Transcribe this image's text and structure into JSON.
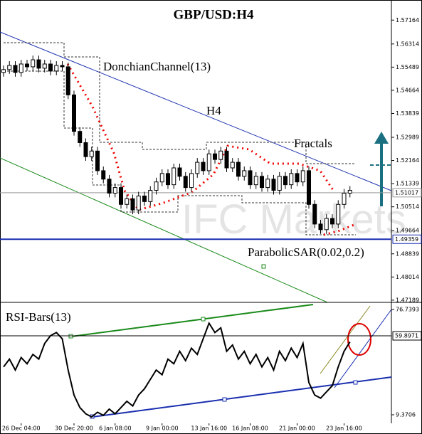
{
  "chart_data": [
    {
      "type": "candlestick",
      "title": "GBP/USD:H4",
      "annotations": [
        "DonchianChannel(13)",
        "H4",
        "Fractals",
        "ParabolicSAR(0.02,0.2)"
      ],
      "watermark": "IFC Markets",
      "categories": [
        null,
        null,
        null,
        "26 Dec 04:00",
        null,
        null,
        null,
        null,
        null,
        null,
        null,
        null,
        "30 Dec 20:00",
        null,
        null,
        null,
        null,
        null,
        null,
        "6 Jan 08:00",
        null,
        null,
        null,
        null,
        null,
        null,
        null,
        "9 Jan 00:00",
        null,
        null,
        null,
        null,
        null,
        null,
        null,
        "13 Jan 16:00",
        null,
        null,
        null,
        null,
        null,
        null,
        "16 Jan 08:00",
        null,
        null,
        null,
        null,
        null,
        null,
        null,
        "21 Jan 00:00",
        null,
        null,
        null,
        null,
        null,
        null,
        null,
        "23 Jan 16:00",
        null
      ],
      "open": [
        1.553,
        1.554,
        1.5555,
        1.553,
        1.556,
        1.555,
        1.5575,
        1.5545,
        1.556,
        1.5535,
        1.5555,
        1.555,
        1.545,
        1.532,
        1.528,
        1.523,
        1.525,
        1.518,
        1.515,
        1.51,
        1.512,
        1.506,
        1.508,
        1.504,
        1.509,
        1.507,
        1.511,
        1.514,
        1.517,
        1.513,
        1.519,
        1.516,
        1.512,
        1.517,
        1.521,
        1.518,
        1.524,
        1.522,
        1.525,
        1.519,
        1.521,
        1.516,
        1.518,
        1.513,
        1.516,
        1.512,
        1.515,
        1.511,
        1.516,
        1.513,
        1.517,
        1.514,
        1.518,
        1.506,
        1.499,
        1.497,
        1.501,
        1.499,
        1.506,
        1.51
      ],
      "high": [
        1.5555,
        1.557,
        1.557,
        1.5575,
        1.5575,
        1.559,
        1.559,
        1.5575,
        1.5575,
        1.557,
        1.557,
        1.5565,
        1.5465,
        1.5335,
        1.5295,
        1.5265,
        1.5265,
        1.5195,
        1.5165,
        1.5135,
        1.5135,
        1.5095,
        1.5095,
        1.5105,
        1.5105,
        1.5125,
        1.5155,
        1.5185,
        1.5185,
        1.5205,
        1.5205,
        1.5175,
        1.5185,
        1.5225,
        1.5225,
        1.5255,
        1.5255,
        1.5265,
        1.5265,
        1.5225,
        1.5225,
        1.5195,
        1.5195,
        1.5175,
        1.5175,
        1.5165,
        1.5165,
        1.5175,
        1.5175,
        1.5185,
        1.5185,
        1.5195,
        1.5195,
        1.5075,
        1.5005,
        1.5025,
        1.5025,
        1.5075,
        1.5115,
        1.5125
      ],
      "low": [
        1.5515,
        1.5525,
        1.5515,
        1.5515,
        1.5535,
        1.5535,
        1.553,
        1.553,
        1.552,
        1.552,
        1.5535,
        1.5435,
        1.5305,
        1.5265,
        1.5215,
        1.5215,
        1.5165,
        1.5135,
        1.5085,
        1.5085,
        1.5045,
        1.5045,
        1.5025,
        1.5025,
        1.5055,
        1.5055,
        1.5095,
        1.5125,
        1.5115,
        1.5115,
        1.5145,
        1.5105,
        1.5105,
        1.5155,
        1.5165,
        1.5165,
        1.5205,
        1.5205,
        1.5175,
        1.5175,
        1.5145,
        1.5145,
        1.5115,
        1.5115,
        1.5105,
        1.5105,
        1.5095,
        1.5095,
        1.5115,
        1.5115,
        1.5125,
        1.5125,
        1.5045,
        1.4975,
        1.4955,
        1.4955,
        1.4975,
        1.4975,
        1.5045,
        1.5085
      ],
      "close": [
        1.554,
        1.5555,
        1.553,
        1.556,
        1.555,
        1.5575,
        1.5545,
        1.556,
        1.5535,
        1.5555,
        1.555,
        1.545,
        1.532,
        1.528,
        1.523,
        1.525,
        1.518,
        1.515,
        1.51,
        1.512,
        1.506,
        1.508,
        1.504,
        1.509,
        1.507,
        1.511,
        1.514,
        1.517,
        1.513,
        1.519,
        1.516,
        1.512,
        1.517,
        1.521,
        1.518,
        1.524,
        1.522,
        1.525,
        1.519,
        1.521,
        1.516,
        1.518,
        1.513,
        1.516,
        1.512,
        1.515,
        1.511,
        1.516,
        1.513,
        1.517,
        1.514,
        1.518,
        1.506,
        1.499,
        1.497,
        1.501,
        1.499,
        1.506,
        1.51,
        1.511
      ],
      "ylim": [
        1.5788,
        1.4711
      ],
      "yticks": [
        1.57164,
        1.56314,
        1.55489,
        1.54664,
        1.53839,
        1.52989,
        1.52164,
        1.51339,
        1.50514,
        1.49664,
        1.48839,
        1.48014,
        1.47189
      ],
      "price_lines": [
        {
          "value": 1.51017,
          "color": "#999999"
        },
        {
          "value": 1.49359,
          "color": "#1a2fb0"
        }
      ]
    },
    {
      "type": "line",
      "title": "RSI-Bars(13)",
      "color": "#000000",
      "values": [
        40,
        45,
        38,
        46,
        42,
        48,
        45,
        55,
        60,
        62,
        58,
        38,
        22,
        14,
        10,
        8,
        11,
        9,
        13,
        10,
        14,
        18,
        15,
        22,
        26,
        32,
        38,
        35,
        45,
        42,
        50,
        44,
        52,
        48,
        58,
        68,
        62,
        65,
        50,
        54,
        45,
        50,
        42,
        48,
        40,
        46,
        38,
        50,
        44,
        52,
        46,
        55,
        30,
        22,
        20,
        24,
        28,
        40,
        50,
        56
      ],
      "ylim": [
        81.3,
        3.9
      ],
      "yticks": [
        76.7393,
        9.3706
      ],
      "level_lines": [
        {
          "value": 59.8971,
          "color": "#000000"
        }
      ]
    }
  ]
}
